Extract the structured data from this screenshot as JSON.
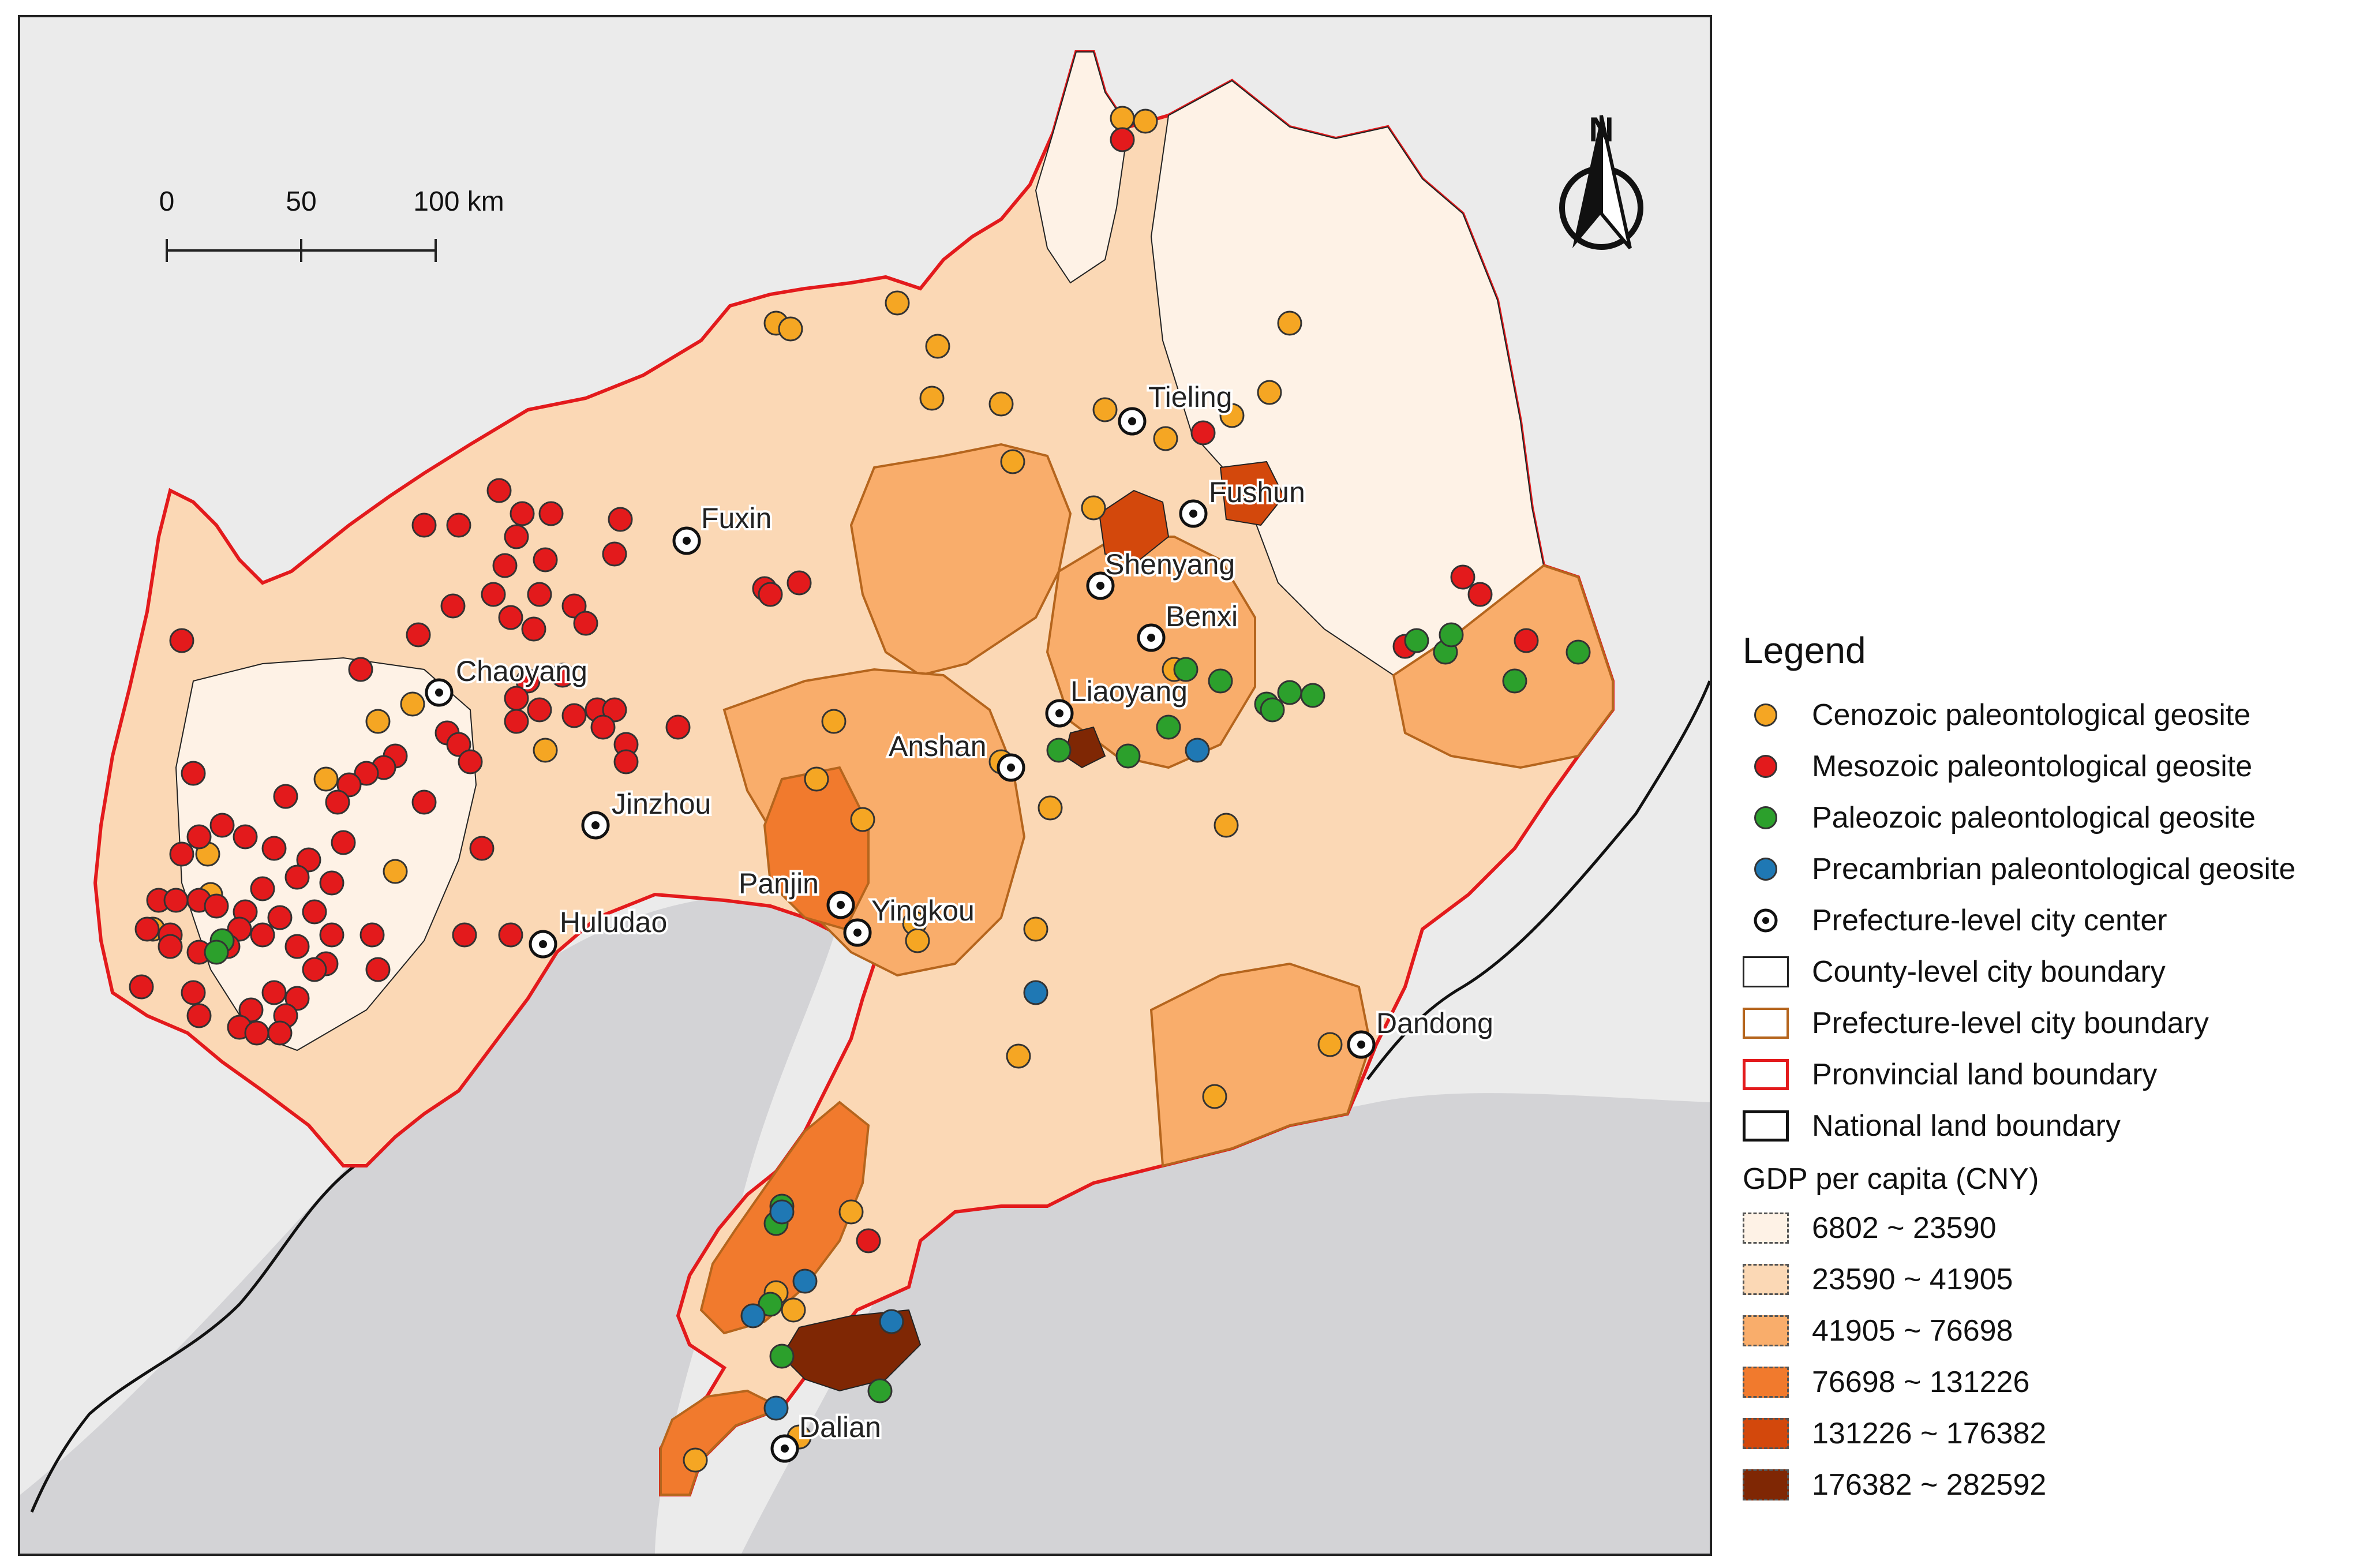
{
  "scale_bar": {
    "ticks": [
      "0",
      "50",
      "100 km"
    ]
  },
  "north_arrow": {
    "label": "N"
  },
  "cities": [
    {
      "name": "Tieling"
    },
    {
      "name": "Fushun"
    },
    {
      "name": "Fuxin"
    },
    {
      "name": "Shenyang"
    },
    {
      "name": "Benxi"
    },
    {
      "name": "Chaoyang"
    },
    {
      "name": "Liaoyang"
    },
    {
      "name": "Anshan"
    },
    {
      "name": "Jinzhou"
    },
    {
      "name": "Panjin"
    },
    {
      "name": "Yingkou"
    },
    {
      "name": "Huludao"
    },
    {
      "name": "Dandong"
    },
    {
      "name": "Dalian"
    }
  ],
  "legend": {
    "title": "Legend",
    "items": [
      {
        "label": "Cenozoic paleontological geosite",
        "color": "#f5a623"
      },
      {
        "label": "Mesozoic paleontological geosite",
        "color": "#e31a1c"
      },
      {
        "label": "Paleozoic paleontological geosite",
        "color": "#2ca02c"
      },
      {
        "label": "Precambrian paleontological geosite",
        "color": "#1f78b4"
      },
      {
        "label": "Prefecture-level city center"
      },
      {
        "label": "County-level city boundary",
        "color": "#222222"
      },
      {
        "label": "Prefecture-level city boundary",
        "color": "#b5651d"
      },
      {
        "label": "Pronvincial land boundary",
        "color": "#e31a1c"
      },
      {
        "label": "National land boundary",
        "color": "#111111"
      }
    ],
    "gdp_title": "GDP per capita (CNY)",
    "gdp_classes": [
      {
        "label": "6802 ~ 23590",
        "color": "#fef2e6"
      },
      {
        "label": "23590 ~ 41905",
        "color": "#fbd8b5"
      },
      {
        "label": "41905 ~ 76698",
        "color": "#f9ad6b"
      },
      {
        "label": "76698 ~ 131226",
        "color": "#f17a2d"
      },
      {
        "label": "131226 ~ 176382",
        "color": "#d3480c"
      },
      {
        "label": "176382 ~ 282592",
        "color": "#7f2704"
      }
    ]
  }
}
